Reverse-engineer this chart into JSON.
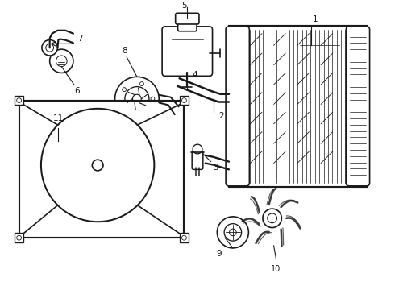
{
  "title": "",
  "bg_color": "#ffffff",
  "line_color": "#1a1a1a",
  "line_width": 1.2,
  "figsize": [
    4.9,
    3.6
  ],
  "dpi": 100
}
